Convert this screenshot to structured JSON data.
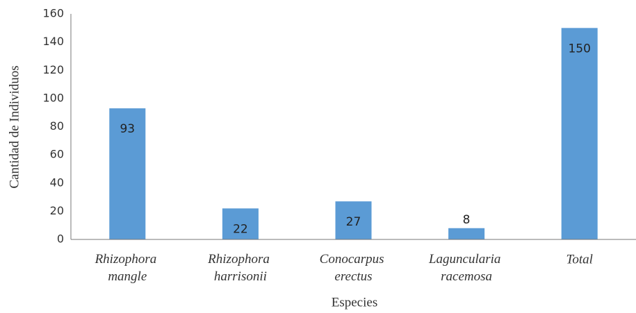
{
  "chart_data": {
    "type": "bar",
    "x_label": "Especies",
    "y_label": "Cantidad de Individuos",
    "categories": [
      "Rhizophora mangle",
      "Rhizophora harrisonii",
      "Conocarpus erectus",
      "Laguncularia racemosa",
      "Total"
    ],
    "values": [
      93,
      22,
      27,
      8,
      150
    ],
    "color": "#5b9bd5",
    "ylim": [
      0,
      160
    ],
    "yticks": [
      0,
      20,
      40,
      60,
      80,
      100,
      120,
      140,
      160
    ],
    "grid": false
  }
}
